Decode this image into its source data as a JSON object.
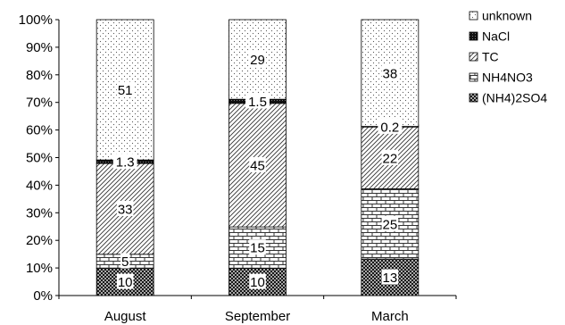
{
  "chart_data": {
    "type": "bar",
    "stacked": true,
    "percent_stacked": true,
    "categories": [
      "August",
      "September",
      "March"
    ],
    "ylim": [
      0,
      100
    ],
    "yticks": [
      "0%",
      "10%",
      "20%",
      "30%",
      "40%",
      "50%",
      "60%",
      "70%",
      "80%",
      "90%",
      "100%"
    ],
    "grid": false,
    "legend_position": "right",
    "series": [
      {
        "name": "(NH4)2SO4",
        "values": [
          10,
          10,
          13
        ],
        "labels": [
          "10",
          "10",
          "13"
        ],
        "pattern": "crosshatch"
      },
      {
        "name": "NH4NO3",
        "values": [
          5,
          15,
          25
        ],
        "labels": [
          "5",
          "15",
          "25"
        ],
        "pattern": "brick"
      },
      {
        "name": "TC",
        "values": [
          33,
          45,
          22
        ],
        "labels": [
          "33",
          "45",
          "22"
        ],
        "pattern": "diagonal"
      },
      {
        "name": "NaCl",
        "values": [
          1.3,
          1.5,
          0.2
        ],
        "labels": [
          "1.3",
          "1.5",
          "0.2"
        ],
        "pattern": "solid-dark"
      },
      {
        "name": "unknown",
        "values": [
          51,
          29,
          38
        ],
        "labels": [
          "51",
          "29",
          "38"
        ],
        "pattern": "dots"
      }
    ]
  }
}
